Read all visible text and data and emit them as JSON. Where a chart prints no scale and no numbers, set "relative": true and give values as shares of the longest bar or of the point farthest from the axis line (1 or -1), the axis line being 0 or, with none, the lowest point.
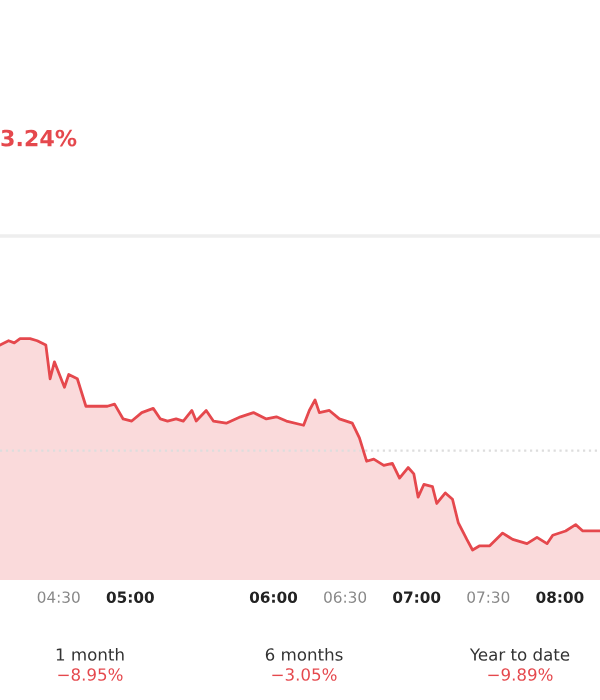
{
  "chart_data": {
    "type": "area",
    "title": "3.24%",
    "relative": true,
    "x": [
      4.09,
      4.15,
      4.19,
      4.23,
      4.3,
      4.35,
      4.41,
      4.44,
      4.47,
      4.54,
      4.57,
      4.63,
      4.69,
      4.74,
      4.84,
      4.89,
      4.95,
      5.01,
      5.08,
      5.16,
      5.21,
      5.26,
      5.32,
      5.37,
      5.43,
      5.46,
      5.53,
      5.58,
      5.67,
      5.77,
      5.86,
      5.95,
      6.02,
      6.09,
      6.21,
      6.25,
      6.29,
      6.32,
      6.39,
      6.46,
      6.55,
      6.6,
      6.65,
      6.7,
      6.77,
      6.83,
      6.88,
      6.94,
      6.98,
      7.01,
      7.05,
      7.11,
      7.14,
      7.2,
      7.25,
      7.29,
      7.35,
      7.39,
      7.44,
      7.51,
      7.6,
      7.67,
      7.77,
      7.84,
      7.91,
      7.95,
      8.04,
      8.11,
      8.16,
      8.21,
      8.28
    ],
    "series": [
      {
        "color": "#e5484d",
        "values": [
          0.97,
          0.99,
          0.98,
          1.0,
          1.0,
          0.99,
          0.97,
          0.81,
          0.89,
          0.77,
          0.83,
          0.81,
          0.68,
          0.68,
          0.68,
          0.69,
          0.62,
          0.61,
          0.65,
          0.67,
          0.62,
          0.61,
          0.62,
          0.61,
          0.66,
          0.61,
          0.66,
          0.61,
          0.6,
          0.63,
          0.65,
          0.62,
          0.63,
          0.61,
          0.59,
          0.66,
          0.71,
          0.65,
          0.66,
          0.62,
          0.6,
          0.53,
          0.42,
          0.43,
          0.4,
          0.41,
          0.34,
          0.39,
          0.36,
          0.25,
          0.31,
          0.3,
          0.22,
          0.27,
          0.24,
          0.13,
          0.05,
          0.0,
          0.02,
          0.02,
          0.08,
          0.05,
          0.03,
          0.06,
          0.03,
          0.07,
          0.09,
          0.12,
          0.09,
          0.09,
          0.09
        ]
      }
    ],
    "xlim": [
      4.09,
      8.28
    ],
    "xticks": [
      {
        "value": 4.5,
        "label": "04:30"
      },
      {
        "value": 5,
        "label": "05:00"
      },
      {
        "value": 6,
        "label": "06:00"
      },
      {
        "value": 6.5,
        "label": "06:30"
      },
      {
        "value": 7,
        "label": "07:00"
      },
      {
        "value": 7.5,
        "label": "07:30"
      },
      {
        "value": 8,
        "label": "08:00"
      }
    ],
    "ref_lines": [
      {
        "axis": "y",
        "value": 0.47,
        "line_style": "dotted",
        "color": "#dddddd"
      }
    ],
    "annotations": [
      "1 month",
      "−8.95%",
      "6 months",
      "−3.05%",
      "Year to date",
      "−9.89%"
    ],
    "grid": false,
    "legend": false
  }
}
